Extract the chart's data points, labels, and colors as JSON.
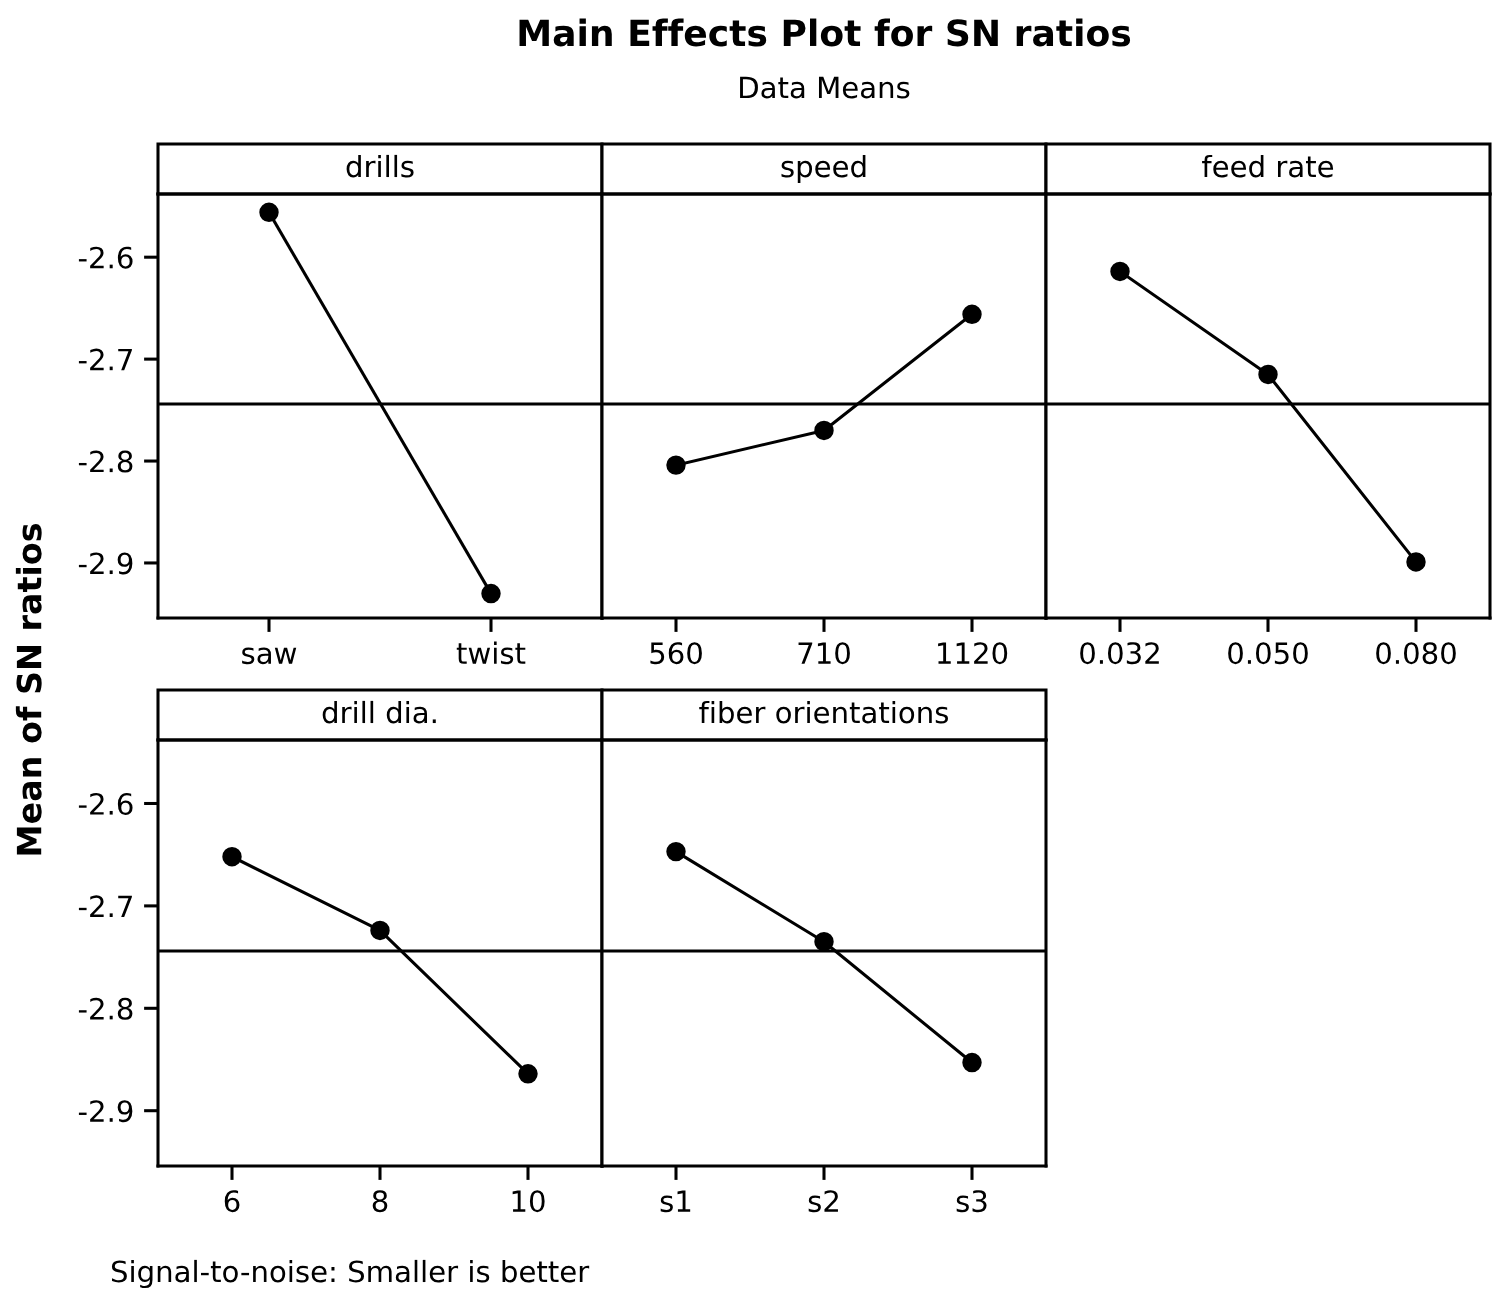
{
  "chart_data": [
    {
      "type": "line",
      "title": "drills",
      "ylabel": "Mean of SN ratios",
      "annotations": [
        "Main Effects Plot for SN ratios",
        "Data Means",
        "Signal-to-noise: Smaller is better"
      ],
      "categories": [
        "saw",
        "twist"
      ],
      "series": [
        {
          "color": "#000000",
          "values": [
            -2.556,
            -2.93
          ]
        }
      ],
      "ylim": [
        -2.954,
        -2.538
      ],
      "yticks": [
        -2.6,
        -2.7,
        -2.8,
        -2.9
      ],
      "ref_lines": [
        {
          "axis": "y",
          "value": -2.744,
          "color": "#000000"
        }
      ],
      "marker": "circle",
      "line_style": "solid",
      "grid": false,
      "legend": false
    },
    {
      "type": "line",
      "title": "speed",
      "categories": [
        "560",
        "710",
        "1120"
      ],
      "series": [
        {
          "color": "#000000",
          "values": [
            -2.804,
            -2.77,
            -2.656
          ]
        }
      ],
      "ylim": [
        -2.954,
        -2.538
      ],
      "yticks": [
        -2.6,
        -2.7,
        -2.8,
        -2.9
      ],
      "tick_labels": "x",
      "ref_lines": [
        {
          "axis": "y",
          "value": -2.744,
          "color": "#000000"
        }
      ],
      "marker": "circle",
      "line_style": "solid",
      "grid": false,
      "legend": false
    },
    {
      "type": "line",
      "title": "feed rate",
      "categories": [
        "0.032",
        "0.050",
        "0.080"
      ],
      "series": [
        {
          "color": "#000000",
          "values": [
            -2.614,
            -2.715,
            -2.899
          ]
        }
      ],
      "ylim": [
        -2.954,
        -2.538
      ],
      "yticks": [
        -2.6,
        -2.7,
        -2.8,
        -2.9
      ],
      "tick_labels": "x",
      "ref_lines": [
        {
          "axis": "y",
          "value": -2.744,
          "color": "#000000"
        }
      ],
      "marker": "circle",
      "line_style": "solid",
      "grid": false,
      "legend": false
    },
    {
      "type": "line",
      "title": "drill dia.",
      "categories": [
        "6",
        "8",
        "10"
      ],
      "series": [
        {
          "color": "#000000",
          "values": [
            -2.652,
            -2.724,
            -2.864
          ]
        }
      ],
      "ylim": [
        -2.954,
        -2.538
      ],
      "yticks": [
        -2.6,
        -2.7,
        -2.8,
        -2.9
      ],
      "ref_lines": [
        {
          "axis": "y",
          "value": -2.744,
          "color": "#000000"
        }
      ],
      "marker": "circle",
      "line_style": "solid",
      "grid": false,
      "legend": false
    },
    {
      "type": "line",
      "title": "fiber orientations",
      "categories": [
        "s1",
        "s2",
        "s3"
      ],
      "series": [
        {
          "color": "#000000",
          "values": [
            -2.647,
            -2.735,
            -2.853
          ]
        }
      ],
      "ylim": [
        -2.954,
        -2.538
      ],
      "yticks": [
        -2.6,
        -2.7,
        -2.8,
        -2.9
      ],
      "tick_labels": "x",
      "ref_lines": [
        {
          "axis": "y",
          "value": -2.744,
          "color": "#000000"
        }
      ],
      "marker": "circle",
      "line_style": "solid",
      "grid": false,
      "legend": false
    }
  ]
}
